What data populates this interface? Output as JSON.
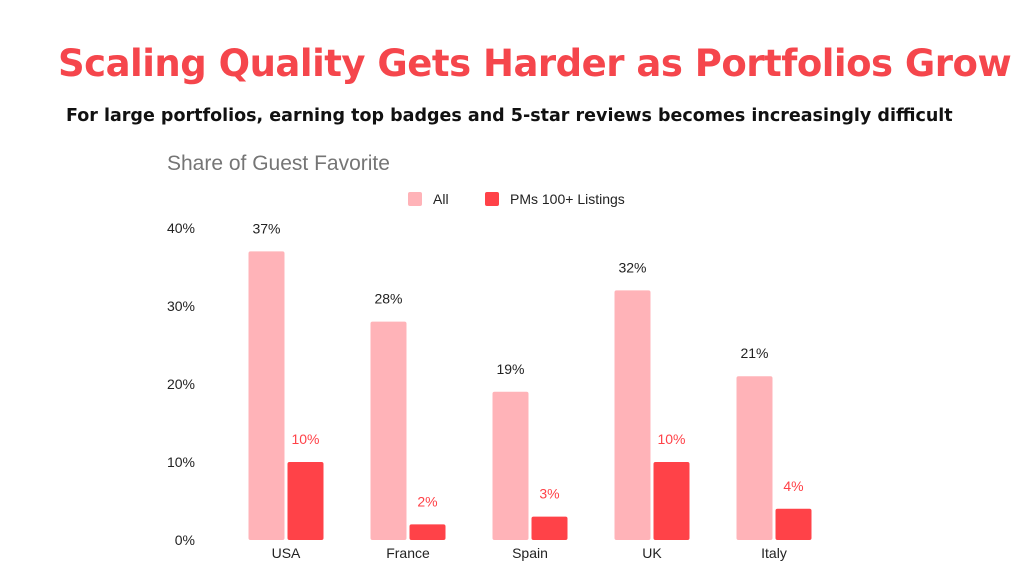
{
  "header": {
    "title": "Scaling Quality Gets Harder as Portfolios Grow",
    "subtitle": "For large portfolios, earning top badges and 5-star reviews becomes increasingly difficult"
  },
  "chart_data": {
    "type": "bar",
    "title": "Share of Guest Favorite",
    "xlabel": "",
    "ylabel": "",
    "categories": [
      "USA",
      "France",
      "Spain",
      "UK",
      "Italy"
    ],
    "series": [
      {
        "name": "All",
        "values": [
          37,
          28,
          19,
          32,
          21
        ],
        "color": "#ffb3b8",
        "label_color": "#222222"
      },
      {
        "name": "PMs 100+ Listings",
        "values": [
          10,
          2,
          3,
          10,
          4
        ],
        "color": "#ff4248",
        "label_color": "#ff4248"
      }
    ],
    "ylim": [
      0,
      40
    ],
    "yticks": [
      0,
      10,
      20,
      30,
      40
    ],
    "ytick_labels": [
      "0%",
      "10%",
      "20%",
      "30%",
      "40%"
    ],
    "value_suffix": "%",
    "grid": false,
    "legend": "top"
  }
}
